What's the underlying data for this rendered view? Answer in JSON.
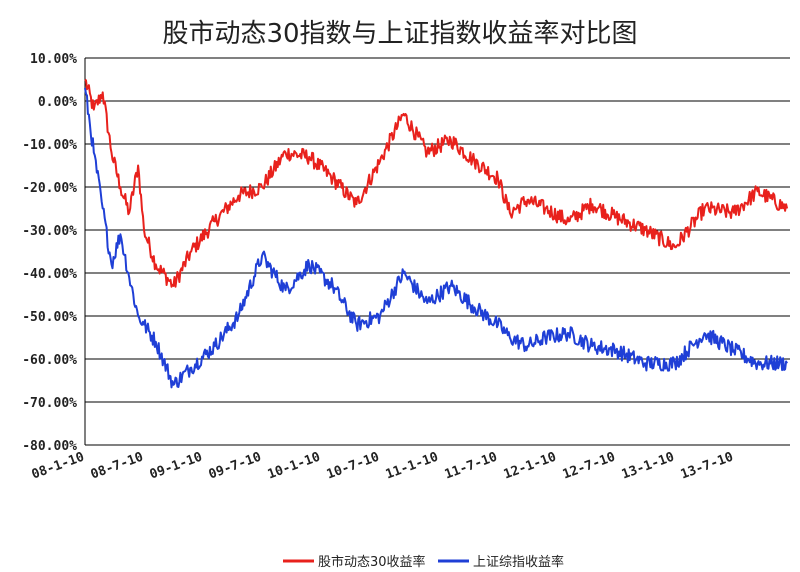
{
  "chart_data": {
    "type": "line",
    "title": "股市动态30指数与上证指数收益率对比图",
    "ylim": [
      -80,
      10
    ],
    "yticks": [
      10,
      0,
      -10,
      -20,
      -30,
      -40,
      -50,
      -60,
      -70,
      -80
    ],
    "ytick_labels": [
      "10.00%",
      "0.00%",
      "-10.00%",
      "-20.00%",
      "-30.00%",
      "-40.00%",
      "-50.00%",
      "-60.00%",
      "-70.00%",
      "-80.00%"
    ],
    "xticks": [
      "08-1-10",
      "08-7-10",
      "09-1-10",
      "09-7-10",
      "10-1-10",
      "10-7-10",
      "11-1-10",
      "11-7-10",
      "12-1-10",
      "12-7-10",
      "13-1-10",
      "13-7-10"
    ],
    "grid": "horizontal",
    "legend_position": "bottom",
    "colors": {
      "red": "#e8211c",
      "blue": "#1f3fd6",
      "grid": "#000000"
    },
    "series": [
      {
        "name": "股市动态30收益率",
        "color": "#e8211c",
        "x": [
          0,
          0.15,
          0.3,
          0.45,
          0.6,
          0.75,
          0.9,
          1.0,
          1.2,
          1.5,
          1.8,
          2.2,
          2.6,
          3.0,
          3.4,
          3.8,
          4.2,
          4.6,
          5.0,
          5.4,
          5.8,
          6.2,
          6.6,
          7.0,
          7.2,
          7.5,
          7.8,
          8.2,
          8.6,
          9.0,
          9.5,
          10.0,
          10.5,
          11.0,
          11.4,
          11.9
        ],
        "values": [
          5,
          -2,
          2,
          -12,
          -20,
          -26,
          -15,
          -30,
          -38,
          -43,
          -35,
          -28,
          -22,
          -20,
          -12,
          -13,
          -18,
          -24,
          -14,
          -3,
          -12,
          -9,
          -14,
          -18,
          -26,
          -23,
          -25,
          -28,
          -24,
          -27,
          -30,
          -34,
          -25,
          -26,
          -21,
          -25
        ]
      },
      {
        "name": "上证综指收益率",
        "color": "#1f3fd6",
        "x": [
          0,
          0.15,
          0.3,
          0.45,
          0.6,
          0.75,
          0.9,
          1.0,
          1.2,
          1.5,
          1.8,
          2.2,
          2.6,
          3.0,
          3.4,
          3.8,
          4.2,
          4.6,
          5.0,
          5.4,
          5.8,
          6.2,
          6.6,
          7.0,
          7.2,
          7.5,
          7.8,
          8.2,
          8.6,
          9.0,
          9.5,
          10.0,
          10.5,
          11.0,
          11.4,
          11.9
        ],
        "values": [
          3,
          -12,
          -25,
          -38,
          -31,
          -41,
          -50,
          -52,
          -56,
          -66,
          -62,
          -57,
          -50,
          -36,
          -44,
          -38,
          -43,
          -52,
          -50,
          -40,
          -47,
          -43,
          -48,
          -52,
          -55,
          -57,
          -55,
          -54,
          -57,
          -58,
          -61,
          -61,
          -54,
          -58,
          -61,
          -61
        ]
      }
    ]
  }
}
